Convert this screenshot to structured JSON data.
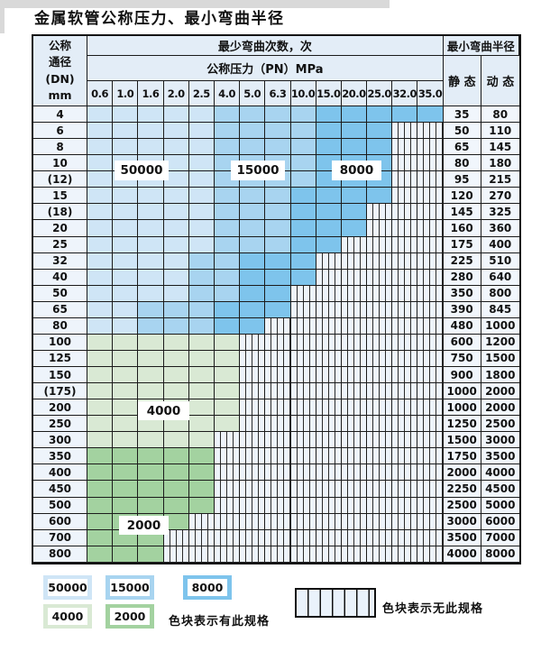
{
  "title": "金属软管公称压力、最小弯曲半径",
  "table": {
    "corner_header_lines": [
      "公称",
      "通径",
      "(DN)",
      "mm"
    ],
    "top_header": "最少弯曲次数，次",
    "right_header": "最小弯曲半径",
    "pn_header": "公称压力（PN）MPa",
    "pn_columns": [
      "0.6",
      "1.0",
      "1.6",
      "2.0",
      "2.5",
      "4.0",
      "5.0",
      "6.3",
      "10.0",
      "15.0",
      "20.0",
      "25.0",
      "32.0",
      "35.0"
    ],
    "static_label": "静 态",
    "dynamic_label": "动 态"
  },
  "colors": {
    "50000": "#cfe5f6",
    "15000": "#a8d4f0",
    "8000": "#7ec4ec",
    "4000": "#d9e9d4",
    "2000": "#a3d2a0",
    "unavailable_bg": "#eef4fb",
    "grid_line": "#1b1b1b",
    "header_bg": "#e3edf7"
  },
  "zone_labels": [
    {
      "text": "50000"
    },
    {
      "text": "15000"
    },
    {
      "text": "8000"
    },
    {
      "text": "4000"
    },
    {
      "text": "2000"
    }
  ],
  "legend": {
    "available_note": "色块表示有此规格",
    "unavailable_note": "色块表示无此规格",
    "items": [
      {
        "label": "50000",
        "color": "#cfe5f6"
      },
      {
        "label": "15000",
        "color": "#a8d4f0"
      },
      {
        "label": "8000",
        "color": "#7ec4ec"
      },
      {
        "label": "4000",
        "color": "#d9e9d4"
      },
      {
        "label": "2000",
        "color": "#a3d2a0"
      }
    ]
  },
  "chart_data": {
    "type": "heatmap",
    "title": "金属软管公称压力、最小弯曲半径",
    "x_categories_pn_mpa": [
      "0.6",
      "1.0",
      "1.6",
      "2.0",
      "2.5",
      "4.0",
      "5.0",
      "6.3",
      "10.0",
      "15.0",
      "20.0",
      "25.0",
      "32.0",
      "35.0"
    ],
    "cell_values_meaning": "minimum bending cycles rating; none = specification not available",
    "rows": [
      {
        "dn": "4",
        "static": "35",
        "dynamic": "80",
        "cells": [
          "50000",
          "50000",
          "50000",
          "50000",
          "50000",
          "15000",
          "15000",
          "15000",
          "15000",
          "8000",
          "8000",
          "8000",
          "8000",
          "8000"
        ]
      },
      {
        "dn": "6",
        "static": "50",
        "dynamic": "110",
        "cells": [
          "50000",
          "50000",
          "50000",
          "50000",
          "50000",
          "15000",
          "15000",
          "15000",
          "15000",
          "8000",
          "8000",
          "8000",
          "none",
          "none"
        ]
      },
      {
        "dn": "8",
        "static": "65",
        "dynamic": "145",
        "cells": [
          "50000",
          "50000",
          "50000",
          "50000",
          "50000",
          "15000",
          "15000",
          "15000",
          "15000",
          "8000",
          "8000",
          "8000",
          "none",
          "none"
        ]
      },
      {
        "dn": "10",
        "static": "80",
        "dynamic": "180",
        "cells": [
          "50000",
          "50000",
          "50000",
          "50000",
          "50000",
          "15000",
          "15000",
          "15000",
          "15000",
          "8000",
          "8000",
          "8000",
          "none",
          "none"
        ]
      },
      {
        "dn": "(12)",
        "static": "95",
        "dynamic": "215",
        "cells": [
          "50000",
          "50000",
          "50000",
          "50000",
          "50000",
          "15000",
          "15000",
          "15000",
          "15000",
          "8000",
          "8000",
          "8000",
          "none",
          "none"
        ]
      },
      {
        "dn": "15",
        "static": "120",
        "dynamic": "270",
        "cells": [
          "50000",
          "50000",
          "50000",
          "50000",
          "50000",
          "15000",
          "15000",
          "15000",
          "8000",
          "8000",
          "8000",
          "8000",
          "none",
          "none"
        ]
      },
      {
        "dn": "(18)",
        "static": "145",
        "dynamic": "325",
        "cells": [
          "50000",
          "50000",
          "50000",
          "50000",
          "50000",
          "15000",
          "15000",
          "15000",
          "8000",
          "8000",
          "8000",
          "none",
          "none",
          "none"
        ]
      },
      {
        "dn": "20",
        "static": "160",
        "dynamic": "360",
        "cells": [
          "50000",
          "50000",
          "50000",
          "50000",
          "50000",
          "15000",
          "15000",
          "15000",
          "8000",
          "8000",
          "8000",
          "none",
          "none",
          "none"
        ]
      },
      {
        "dn": "25",
        "static": "175",
        "dynamic": "400",
        "cells": [
          "50000",
          "50000",
          "50000",
          "50000",
          "50000",
          "15000",
          "15000",
          "15000",
          "8000",
          "8000",
          "none",
          "none",
          "none",
          "none"
        ]
      },
      {
        "dn": "32",
        "static": "225",
        "dynamic": "510",
        "cells": [
          "50000",
          "50000",
          "50000",
          "50000",
          "15000",
          "15000",
          "8000",
          "8000",
          "8000",
          "none",
          "none",
          "none",
          "none",
          "none"
        ]
      },
      {
        "dn": "40",
        "static": "280",
        "dynamic": "640",
        "cells": [
          "50000",
          "50000",
          "50000",
          "50000",
          "15000",
          "15000",
          "8000",
          "8000",
          "8000",
          "none",
          "none",
          "none",
          "none",
          "none"
        ]
      },
      {
        "dn": "50",
        "static": "350",
        "dynamic": "800",
        "cells": [
          "50000",
          "50000",
          "50000",
          "50000",
          "15000",
          "15000",
          "8000",
          "8000",
          "none",
          "none",
          "none",
          "none",
          "none",
          "none"
        ]
      },
      {
        "dn": "65",
        "static": "390",
        "dynamic": "845",
        "cells": [
          "50000",
          "50000",
          "15000",
          "15000",
          "15000",
          "8000",
          "8000",
          "8000",
          "none",
          "none",
          "none",
          "none",
          "none",
          "none"
        ]
      },
      {
        "dn": "80",
        "static": "480",
        "dynamic": "1000",
        "cells": [
          "50000",
          "50000",
          "15000",
          "15000",
          "15000",
          "8000",
          "8000",
          "none",
          "none",
          "none",
          "none",
          "none",
          "none",
          "none"
        ]
      },
      {
        "dn": "100",
        "static": "600",
        "dynamic": "1200",
        "cells": [
          "4000",
          "4000",
          "4000",
          "4000",
          "4000",
          "4000",
          "none",
          "none",
          "none",
          "none",
          "none",
          "none",
          "none",
          "none"
        ]
      },
      {
        "dn": "125",
        "static": "750",
        "dynamic": "1500",
        "cells": [
          "4000",
          "4000",
          "4000",
          "4000",
          "4000",
          "4000",
          "none",
          "none",
          "none",
          "none",
          "none",
          "none",
          "none",
          "none"
        ]
      },
      {
        "dn": "150",
        "static": "900",
        "dynamic": "1800",
        "cells": [
          "4000",
          "4000",
          "4000",
          "4000",
          "4000",
          "4000",
          "none",
          "none",
          "none",
          "none",
          "none",
          "none",
          "none",
          "none"
        ]
      },
      {
        "dn": "(175)",
        "static": "1000",
        "dynamic": "2000",
        "cells": [
          "4000",
          "4000",
          "4000",
          "4000",
          "4000",
          "4000",
          "none",
          "none",
          "none",
          "none",
          "none",
          "none",
          "none",
          "none"
        ]
      },
      {
        "dn": "200",
        "static": "1000",
        "dynamic": "2000",
        "cells": [
          "4000",
          "4000",
          "4000",
          "4000",
          "4000",
          "4000",
          "none",
          "none",
          "none",
          "none",
          "none",
          "none",
          "none",
          "none"
        ]
      },
      {
        "dn": "250",
        "static": "1250",
        "dynamic": "2500",
        "cells": [
          "4000",
          "4000",
          "4000",
          "4000",
          "4000",
          "4000",
          "none",
          "none",
          "none",
          "none",
          "none",
          "none",
          "none",
          "none"
        ]
      },
      {
        "dn": "300",
        "static": "1500",
        "dynamic": "3000",
        "cells": [
          "4000",
          "4000",
          "4000",
          "4000",
          "4000",
          "none",
          "none",
          "none",
          "none",
          "none",
          "none",
          "none",
          "none",
          "none"
        ]
      },
      {
        "dn": "350",
        "static": "1750",
        "dynamic": "3500",
        "cells": [
          "2000",
          "2000",
          "2000",
          "2000",
          "2000",
          "none",
          "none",
          "none",
          "none",
          "none",
          "none",
          "none",
          "none",
          "none"
        ]
      },
      {
        "dn": "400",
        "static": "2000",
        "dynamic": "4000",
        "cells": [
          "2000",
          "2000",
          "2000",
          "2000",
          "2000",
          "none",
          "none",
          "none",
          "none",
          "none",
          "none",
          "none",
          "none",
          "none"
        ]
      },
      {
        "dn": "450",
        "static": "2250",
        "dynamic": "4500",
        "cells": [
          "2000",
          "2000",
          "2000",
          "2000",
          "2000",
          "none",
          "none",
          "none",
          "none",
          "none",
          "none",
          "none",
          "none",
          "none"
        ]
      },
      {
        "dn": "500",
        "static": "2500",
        "dynamic": "5000",
        "cells": [
          "2000",
          "2000",
          "2000",
          "2000",
          "2000",
          "none",
          "none",
          "none",
          "none",
          "none",
          "none",
          "none",
          "none",
          "none"
        ]
      },
      {
        "dn": "600",
        "static": "3000",
        "dynamic": "6000",
        "cells": [
          "2000",
          "2000",
          "2000",
          "2000",
          "none",
          "none",
          "none",
          "none",
          "none",
          "none",
          "none",
          "none",
          "none",
          "none"
        ]
      },
      {
        "dn": "700",
        "static": "3500",
        "dynamic": "7000",
        "cells": [
          "2000",
          "2000",
          "2000",
          "none",
          "none",
          "none",
          "none",
          "none",
          "none",
          "none",
          "none",
          "none",
          "none",
          "none"
        ]
      },
      {
        "dn": "800",
        "static": "4000",
        "dynamic": "8000",
        "cells": [
          "2000",
          "2000",
          "2000",
          "none",
          "none",
          "none",
          "none",
          "none",
          "none",
          "none",
          "none",
          "none",
          "none",
          "none"
        ]
      }
    ]
  }
}
